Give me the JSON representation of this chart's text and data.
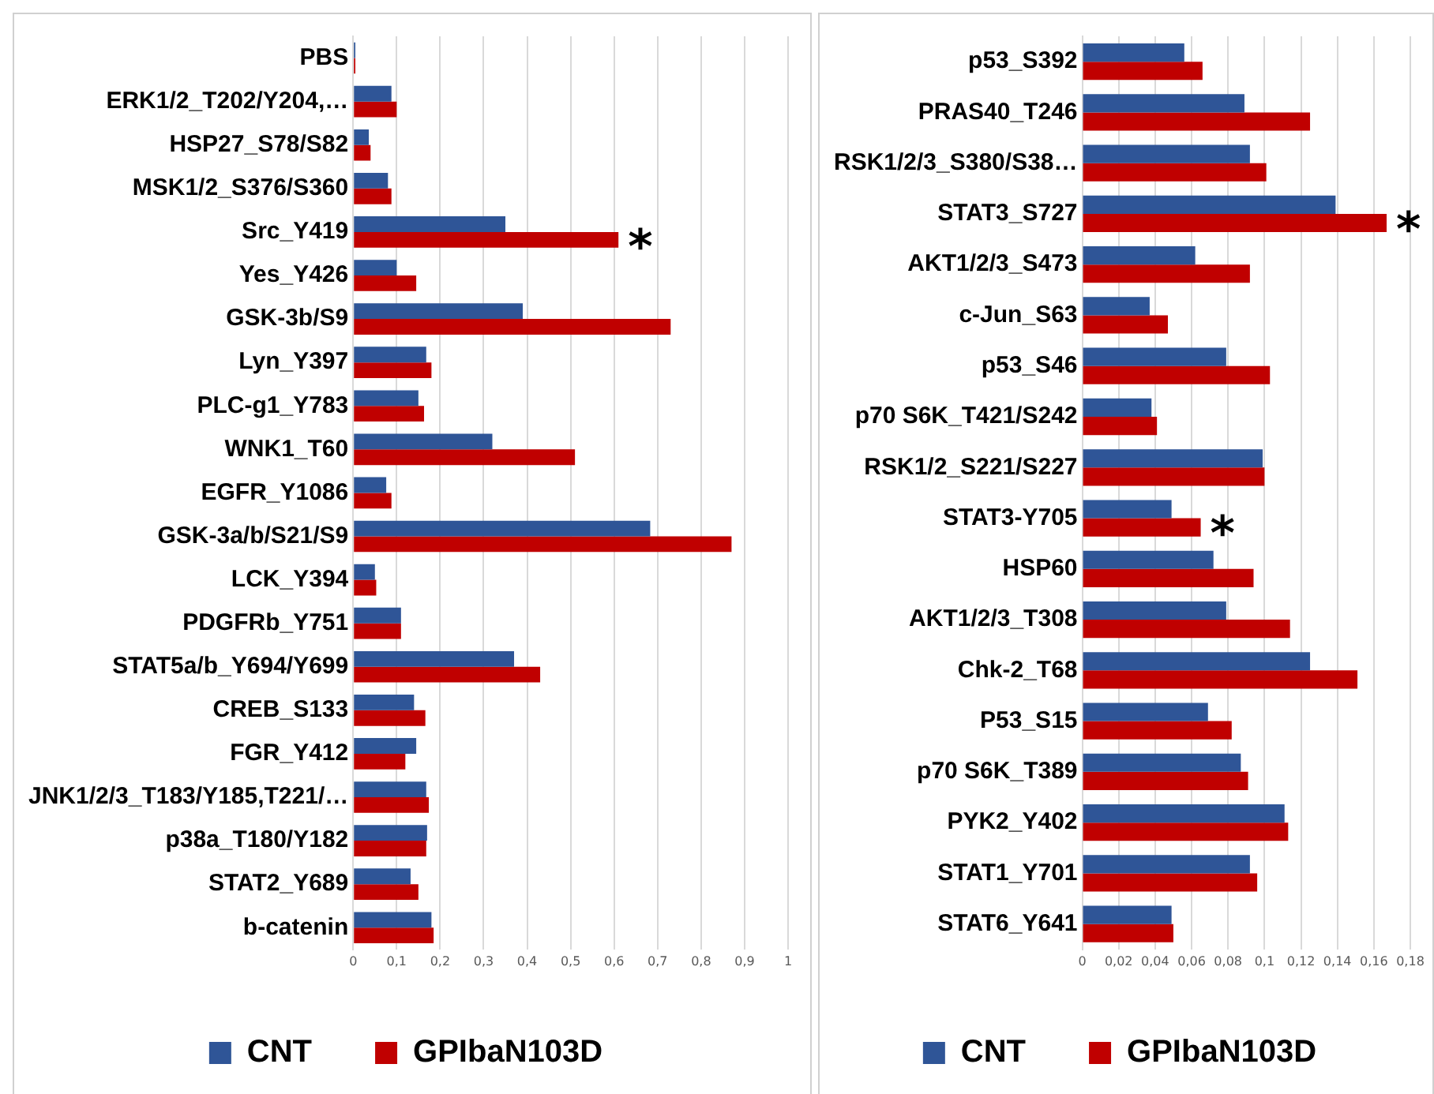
{
  "chart_data": [
    {
      "type": "bar",
      "orientation": "horizontal",
      "categories": [
        "PBS",
        "ERK1/2_T202/Y204,…",
        "HSP27_S78/S82",
        "MSK1/2_S376/S360",
        "Src_Y419",
        "Yes_Y426",
        "GSK-3b/S9",
        "Lyn_Y397",
        "PLC-g1_Y783",
        "WNK1_T60",
        "EGFR_Y1086",
        "GSK-3a/b/S21/S9",
        "LCK_Y394",
        "PDGFRb_Y751",
        "STAT5a/b_Y694/Y699",
        "CREB_S133",
        "FGR_Y412",
        "JNK1/2/3_T183/Y185,T221/…",
        "p38a_T180/Y182",
        "STAT2_Y689",
        "b-catenin"
      ],
      "series": [
        {
          "name": "CNT",
          "color": "#2f5597",
          "values": [
            0.005,
            0.088,
            0.036,
            0.08,
            0.35,
            0.1,
            0.39,
            0.168,
            0.15,
            0.32,
            0.076,
            0.683,
            0.05,
            0.11,
            0.37,
            0.14,
            0.145,
            0.168,
            0.17,
            0.132,
            0.18
          ]
        },
        {
          "name": "GPIbaN103D",
          "color": "#c00000",
          "values": [
            0.005,
            0.1,
            0.04,
            0.088,
            0.61,
            0.145,
            0.73,
            0.18,
            0.163,
            0.51,
            0.088,
            0.87,
            0.053,
            0.11,
            0.43,
            0.166,
            0.12,
            0.174,
            0.168,
            0.15,
            0.185
          ]
        }
      ],
      "xlim": [
        0,
        1
      ],
      "xticks": [
        {
          "value": 0,
          "label": "0"
        },
        {
          "value": 0.1,
          "label": "0,1"
        },
        {
          "value": 0.2,
          "label": "0,2"
        },
        {
          "value": 0.3,
          "label": "0,3"
        },
        {
          "value": 0.4,
          "label": "0,4"
        },
        {
          "value": 0.5,
          "label": "0,5"
        },
        {
          "value": 0.6,
          "label": "0,6"
        },
        {
          "value": 0.7,
          "label": "0,7"
        },
        {
          "value": 0.8,
          "label": "0,8"
        },
        {
          "value": 0.9,
          "label": "0,9"
        },
        {
          "value": 1,
          "label": "1"
        }
      ],
      "grid": "x",
      "legend": "bottom",
      "annotations": [
        {
          "text": "*",
          "x": 0.61,
          "y": "Src_Y419"
        }
      ]
    },
    {
      "type": "bar",
      "orientation": "horizontal",
      "categories": [
        "p53_S392",
        "PRAS40_T246",
        "RSK1/2/3_S380/S38…",
        "STAT3_S727",
        "AKT1/2/3_S473",
        "c-Jun_S63",
        "p53_S46",
        "p70 S6K_T421/S242",
        "RSK1/2_S221/S227",
        "STAT3-Y705",
        "HSP60",
        "AKT1/2/3_T308",
        "Chk-2_T68",
        "P53_S15",
        "p70 S6K_T389",
        "PYK2_Y402",
        "STAT1_Y701",
        "STAT6_Y641"
      ],
      "series": [
        {
          "name": "CNT",
          "color": "#2f5597",
          "values": [
            0.056,
            0.089,
            0.092,
            0.139,
            0.062,
            0.037,
            0.079,
            0.038,
            0.099,
            0.049,
            0.072,
            0.079,
            0.125,
            0.069,
            0.087,
            0.111,
            0.092,
            0.049
          ]
        },
        {
          "name": "GPIbaN103D",
          "color": "#c00000",
          "values": [
            0.066,
            0.125,
            0.101,
            0.167,
            0.092,
            0.047,
            0.103,
            0.041,
            0.1,
            0.065,
            0.094,
            0.114,
            0.151,
            0.082,
            0.091,
            0.113,
            0.096,
            0.05
          ]
        }
      ],
      "xlim": [
        0,
        0.18
      ],
      "xticks": [
        {
          "value": 0,
          "label": "0"
        },
        {
          "value": 0.02,
          "label": "0,02"
        },
        {
          "value": 0.04,
          "label": "0,04"
        },
        {
          "value": 0.06,
          "label": "0,06"
        },
        {
          "value": 0.08,
          "label": "0,08"
        },
        {
          "value": 0.1,
          "label": "0,1"
        },
        {
          "value": 0.12,
          "label": "0,12"
        },
        {
          "value": 0.14,
          "label": "0,14"
        },
        {
          "value": 0.16,
          "label": "0,16"
        },
        {
          "value": 0.18,
          "label": "0,18"
        }
      ],
      "grid": "x",
      "legend": "bottom",
      "annotations": [
        {
          "text": "*",
          "x": 0.167,
          "y": "STAT3_S727"
        },
        {
          "text": "*",
          "x": 0.065,
          "y": "STAT3-Y705"
        }
      ]
    }
  ]
}
